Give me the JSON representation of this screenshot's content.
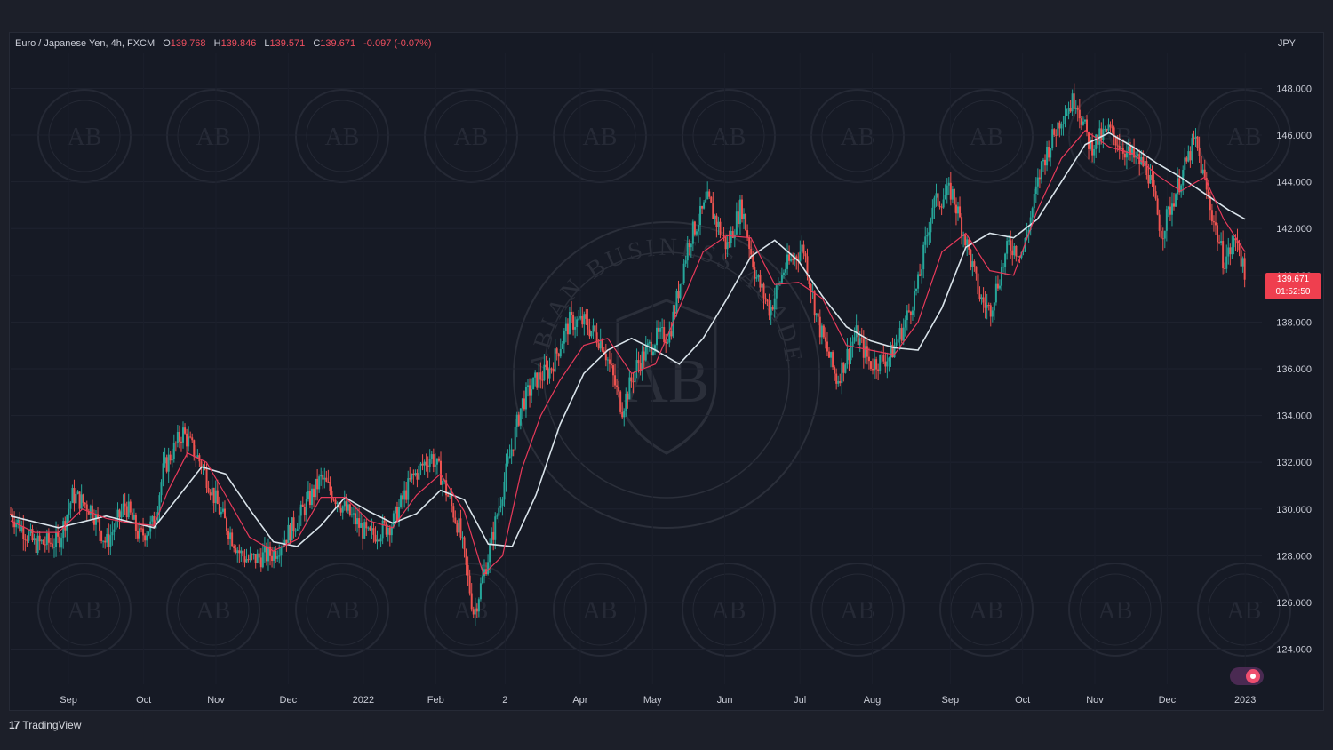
{
  "legend": {
    "symbol": "Euro / Japanese Yen, 4h, FXCM",
    "open_label": "O",
    "open": "139.768",
    "high_label": "H",
    "high": "139.846",
    "low_label": "L",
    "low": "139.571",
    "close_label": "C",
    "close": "139.671",
    "change": "-0.097 (-0.07%)"
  },
  "currency": "JPY",
  "price_tag": {
    "price": "139.671",
    "countdown": "01:52:50"
  },
  "brand": {
    "name": "TradingView",
    "logo_text": "17"
  },
  "watermark": {
    "text": "ARABIAN BUSINESS ACADEMY",
    "initials": "AB"
  },
  "colors": {
    "up": "#26a69a",
    "down": "#ef5350",
    "ma_fast": "#e83a5a",
    "ma_slow": "#d9e3ea",
    "last_price_line": "#ef4f5f"
  },
  "chart_data": {
    "type": "candlestick",
    "title": "Euro / Japanese Yen, 4h, FXCM",
    "ylim": [
      122.5,
      149.5
    ],
    "y_ticks": [
      "148.000",
      "146.000",
      "144.000",
      "142.000",
      "140.000",
      "138.000",
      "136.000",
      "134.000",
      "132.000",
      "130.000",
      "128.000",
      "126.000",
      "124.000"
    ],
    "x_ticks": [
      "Sep",
      "Oct",
      "Nov",
      "Dec",
      "2022",
      "Feb",
      "2",
      "Apr",
      "May",
      "Jun",
      "Jul",
      "Aug",
      "Sep",
      "Oct",
      "Nov",
      "Dec",
      "2023"
    ],
    "last_price": 139.671,
    "price_path": [
      [
        0,
        129.8
      ],
      [
        0.5,
        128.5
      ],
      [
        1,
        128.6
      ],
      [
        1.3,
        130.6
      ],
      [
        1.7,
        130.0
      ],
      [
        2,
        128.5
      ],
      [
        2.4,
        130.2
      ],
      [
        2.7,
        128.8
      ],
      [
        3,
        129.4
      ],
      [
        3.2,
        131.7
      ],
      [
        3.6,
        133.3
      ],
      [
        4,
        131.9
      ],
      [
        4.4,
        129.8
      ],
      [
        4.8,
        128.1
      ],
      [
        5,
        127.8
      ],
      [
        5.5,
        128.1
      ],
      [
        6,
        129.5
      ],
      [
        6.5,
        131.3
      ],
      [
        7,
        130.0
      ],
      [
        7.5,
        128.8
      ],
      [
        8,
        129.4
      ],
      [
        8.4,
        131.3
      ],
      [
        8.8,
        132.3
      ],
      [
        9,
        131.5
      ],
      [
        9.4,
        129.1
      ],
      [
        9.7,
        125.5
      ],
      [
        10,
        128.0
      ],
      [
        10.4,
        131.8
      ],
      [
        10.7,
        134.5
      ],
      [
        11,
        135.5
      ],
      [
        11.3,
        136.0
      ],
      [
        11.7,
        138.0
      ],
      [
        12,
        138.0
      ],
      [
        12.4,
        137.1
      ],
      [
        12.8,
        134.3
      ],
      [
        13.1,
        136.1
      ],
      [
        13.5,
        137.3
      ],
      [
        13.8,
        137.5
      ],
      [
        14.2,
        141.5
      ],
      [
        14.6,
        143.2
      ],
      [
        15,
        141.2
      ],
      [
        15.3,
        143.0
      ],
      [
        15.6,
        140.0
      ],
      [
        15.9,
        138.5
      ],
      [
        16.2,
        140.3
      ],
      [
        16.6,
        141.2
      ],
      [
        16.9,
        138.0
      ],
      [
        17.3,
        135.5
      ],
      [
        17.7,
        137.5
      ],
      [
        18,
        136.2
      ],
      [
        18.4,
        136.5
      ],
      [
        18.7,
        137.8
      ],
      [
        19,
        139.6
      ],
      [
        19.3,
        143.0
      ],
      [
        19.7,
        143.6
      ],
      [
        20,
        141.5
      ],
      [
        20.3,
        139.0
      ],
      [
        20.5,
        138.5
      ],
      [
        20.9,
        141.3
      ],
      [
        21.2,
        141.0
      ],
      [
        21.6,
        144.8
      ],
      [
        22,
        146.8
      ],
      [
        22.3,
        147.6
      ],
      [
        22.6,
        145.5
      ],
      [
        23,
        146.2
      ],
      [
        23.4,
        145.2
      ],
      [
        23.8,
        144.6
      ],
      [
        24.1,
        141.8
      ],
      [
        24.4,
        143.6
      ],
      [
        24.8,
        145.8
      ],
      [
        25.1,
        143.1
      ],
      [
        25.4,
        140.6
      ],
      [
        25.7,
        141.6
      ],
      [
        25.85,
        139.671
      ]
    ],
    "ma_fast_path": [
      [
        0,
        129.5
      ],
      [
        0.5,
        129.0
      ],
      [
        1,
        129.0
      ],
      [
        1.5,
        130.0
      ],
      [
        2,
        129.6
      ],
      [
        2.5,
        129.4
      ],
      [
        3,
        129.3
      ],
      [
        3.3,
        130.8
      ],
      [
        3.7,
        132.4
      ],
      [
        4.1,
        132.0
      ],
      [
        4.5,
        130.6
      ],
      [
        5,
        128.8
      ],
      [
        5.5,
        128.2
      ],
      [
        6,
        128.7
      ],
      [
        6.5,
        130.5
      ],
      [
        7,
        130.5
      ],
      [
        7.5,
        129.5
      ],
      [
        8,
        129.2
      ],
      [
        8.5,
        130.6
      ],
      [
        9,
        131.5
      ],
      [
        9.5,
        129.9
      ],
      [
        9.9,
        127.2
      ],
      [
        10.3,
        128.0
      ],
      [
        10.7,
        131.7
      ],
      [
        11.1,
        134.0
      ],
      [
        11.5,
        135.5
      ],
      [
        12,
        137.0
      ],
      [
        12.5,
        137.3
      ],
      [
        13,
        135.8
      ],
      [
        13.5,
        136.2
      ],
      [
        14,
        138.6
      ],
      [
        14.5,
        141.0
      ],
      [
        15,
        141.7
      ],
      [
        15.5,
        141.6
      ],
      [
        16,
        139.6
      ],
      [
        16.5,
        139.7
      ],
      [
        17,
        139.0
      ],
      [
        17.5,
        137.0
      ],
      [
        18,
        136.8
      ],
      [
        18.5,
        136.6
      ],
      [
        19,
        138.0
      ],
      [
        19.5,
        141.0
      ],
      [
        20,
        141.8
      ],
      [
        20.5,
        140.2
      ],
      [
        21,
        140.0
      ],
      [
        21.5,
        142.8
      ],
      [
        22,
        145.0
      ],
      [
        22.5,
        146.2
      ],
      [
        23,
        145.5
      ],
      [
        23.5,
        145.2
      ],
      [
        24,
        144.3
      ],
      [
        24.5,
        143.6
      ],
      [
        25,
        144.2
      ],
      [
        25.4,
        142.4
      ],
      [
        25.85,
        141.0
      ]
    ],
    "ma_slow_path": [
      [
        0,
        129.7
      ],
      [
        1,
        129.2
      ],
      [
        2,
        129.7
      ],
      [
        3,
        129.2
      ],
      [
        3.5,
        130.5
      ],
      [
        4,
        131.8
      ],
      [
        4.5,
        131.5
      ],
      [
        5,
        130.0
      ],
      [
        5.5,
        128.6
      ],
      [
        6,
        128.4
      ],
      [
        6.5,
        129.3
      ],
      [
        7,
        130.5
      ],
      [
        7.5,
        129.9
      ],
      [
        8,
        129.4
      ],
      [
        8.5,
        129.8
      ],
      [
        9,
        130.8
      ],
      [
        9.5,
        130.4
      ],
      [
        10,
        128.5
      ],
      [
        10.5,
        128.4
      ],
      [
        11,
        130.6
      ],
      [
        11.5,
        133.6
      ],
      [
        12,
        135.8
      ],
      [
        12.5,
        136.8
      ],
      [
        13,
        137.3
      ],
      [
        13.5,
        136.8
      ],
      [
        14,
        136.2
      ],
      [
        14.5,
        137.3
      ],
      [
        15,
        139.0
      ],
      [
        15.5,
        140.8
      ],
      [
        16,
        141.5
      ],
      [
        16.5,
        140.6
      ],
      [
        17,
        139.1
      ],
      [
        17.5,
        137.8
      ],
      [
        18,
        137.2
      ],
      [
        18.5,
        136.9
      ],
      [
        19,
        136.8
      ],
      [
        19.5,
        138.6
      ],
      [
        20,
        141.2
      ],
      [
        20.5,
        141.8
      ],
      [
        21,
        141.6
      ],
      [
        21.5,
        142.4
      ],
      [
        22,
        144.0
      ],
      [
        22.5,
        145.6
      ],
      [
        23,
        146.1
      ],
      [
        23.5,
        145.5
      ],
      [
        24,
        144.8
      ],
      [
        24.5,
        144.2
      ],
      [
        25,
        143.5
      ],
      [
        25.5,
        142.8
      ],
      [
        25.85,
        142.4
      ]
    ]
  }
}
